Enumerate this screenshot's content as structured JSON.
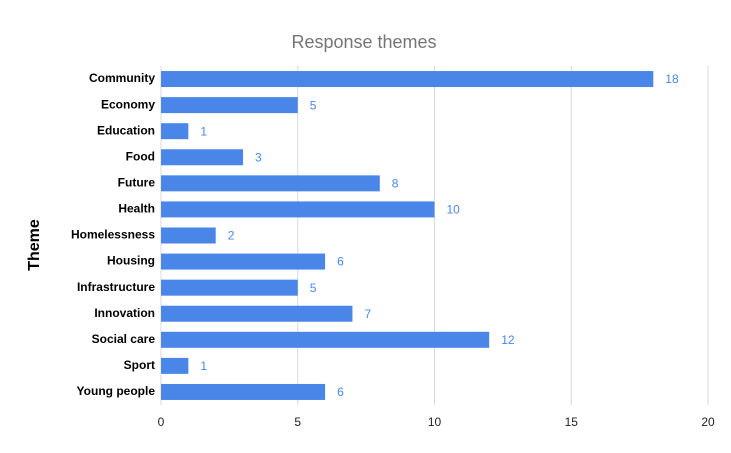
{
  "chart_data": {
    "type": "hbar",
    "title": "Response themes",
    "y_label": "Theme",
    "categories": [
      "Community",
      "Economy",
      "Education",
      "Food",
      "Future",
      "Health",
      "Homelessness",
      "Housing",
      "Infrastructure",
      "Innovation",
      "Social care",
      "Sport",
      "Young people"
    ],
    "values": [
      18,
      5,
      1,
      3,
      8,
      10,
      2,
      6,
      5,
      7,
      12,
      1,
      6
    ],
    "color": "#4a86e8",
    "label_color": "#4a86e8",
    "xlim": [
      0,
      20
    ],
    "xticks": [
      0,
      5,
      10,
      15,
      20
    ],
    "grid": true
  }
}
